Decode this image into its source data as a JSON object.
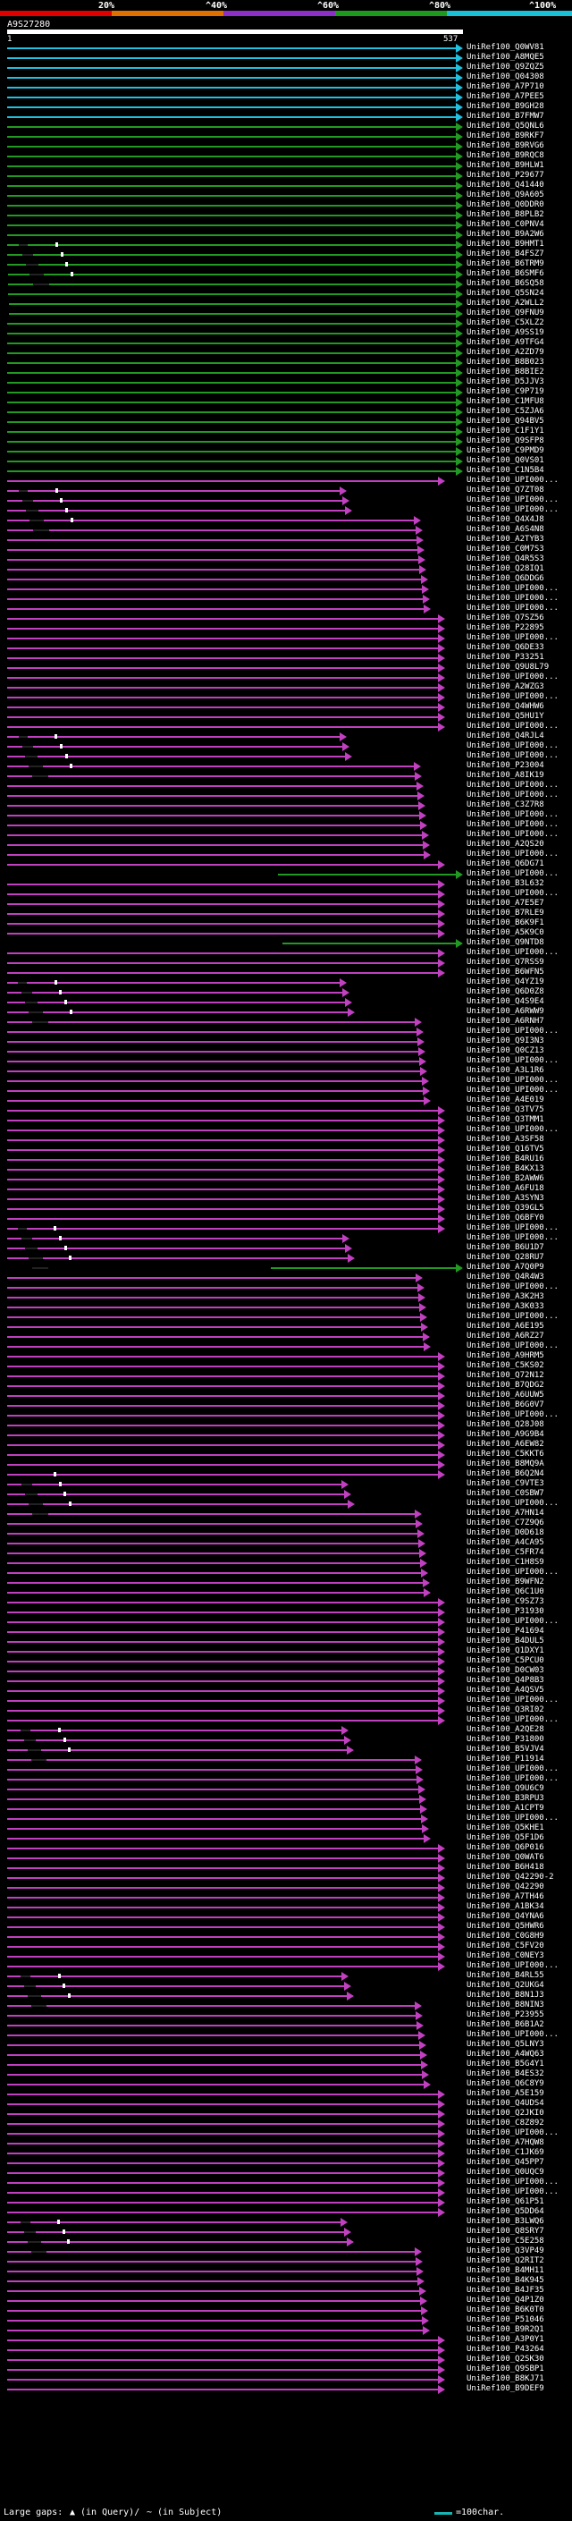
{
  "scale": {
    "ticks": [
      "20%",
      "^40%",
      "^60%",
      "^80%",
      "^100%"
    ],
    "colors": [
      "#e00000",
      "#e07000",
      "#8c2fc8",
      "#1d9a1d",
      "#19c0d8"
    ]
  },
  "query": {
    "id": "A9S27280",
    "start": "1",
    "end": "537"
  },
  "hits": [
    {
      "label": "UniRef100_Q0WV81",
      "color": "#20c0e0"
    },
    {
      "label": "UniRef100_A8MQE5",
      "color": "#20c0e0"
    },
    {
      "label": "UniRef100_Q9ZQZ5",
      "color": "#20c0e0"
    },
    {
      "label": "UniRef100_Q04308",
      "color": "#20c0e0"
    },
    {
      "label": "UniRef100_A7P710",
      "color": "#20c0e0"
    },
    {
      "label": "UniRef100_A7PEE5",
      "color": "#20c0e0"
    },
    {
      "label": "UniRef100_B9GH28",
      "color": "#20c0e0"
    },
    {
      "label": "UniRef100_B7FMW7",
      "color": "#20c0e0"
    },
    {
      "label": "UniRef100_Q5QNL6",
      "color": "#229922"
    },
    {
      "label": "UniRef100_B9RKF7",
      "color": "#229922"
    },
    {
      "label": "UniRef100_B9RVG6",
      "color": "#229922"
    },
    {
      "label": "UniRef100_B9RQC8",
      "color": "#229922"
    },
    {
      "label": "UniRef100_B9HLW1",
      "color": "#229922"
    },
    {
      "label": "UniRef100_P29677",
      "color": "#229922"
    },
    {
      "label": "UniRef100_Q41440",
      "color": "#229922"
    },
    {
      "label": "UniRef100_Q9A605",
      "color": "#229922"
    },
    {
      "label": "UniRef100_Q0DDR0",
      "color": "#229922"
    },
    {
      "label": "UniRef100_B8PLB2",
      "color": "#229922"
    },
    {
      "label": "UniRef100_C0PNV4",
      "color": "#229922"
    },
    {
      "label": "UniRef100_B9A2W6",
      "color": "#229922"
    },
    {
      "label": "UniRef100_B9HMT1",
      "color": "#229922"
    },
    {
      "label": "UniRef100_B4FSZ7",
      "color": "#229922"
    },
    {
      "label": "UniRef100_B6TRM9",
      "color": "#229922"
    },
    {
      "label": "UniRef100_B6SMF6",
      "color": "#229922"
    },
    {
      "label": "UniRef100_B6SQ58",
      "color": "#229922"
    },
    {
      "label": "UniRef100_Q5SN24",
      "color": "#229922"
    },
    {
      "label": "UniRef100_A2WLL2",
      "color": "#229922"
    },
    {
      "label": "UniRef100_Q9FNU9",
      "color": "#229922"
    },
    {
      "label": "UniRef100_C5XLZ2",
      "color": "#229922"
    },
    {
      "label": "UniRef100_A9SS19",
      "color": "#229922"
    },
    {
      "label": "UniRef100_A9TFG4",
      "color": "#229922"
    },
    {
      "label": "UniRef100_A2ZD79",
      "color": "#229922"
    },
    {
      "label": "UniRef100_B8B023",
      "color": "#229922"
    },
    {
      "label": "UniRef100_B8BIE2",
      "color": "#229922"
    },
    {
      "label": "UniRef100_D5JJV3",
      "color": "#229922"
    },
    {
      "label": "UniRef100_C9P719",
      "color": "#229922"
    },
    {
      "label": "UniRef100_C1MFU8",
      "color": "#229922"
    },
    {
      "label": "UniRef100_C5ZJA6",
      "color": "#229922"
    },
    {
      "label": "UniRef100_Q94BV5",
      "color": "#229922"
    },
    {
      "label": "UniRef100_C1F1Y1",
      "color": "#229922"
    },
    {
      "label": "UniRef100_Q9SFP8",
      "color": "#229922"
    },
    {
      "label": "UniRef100_C9PMD9",
      "color": "#229922"
    },
    {
      "label": "UniRef100_Q0VS01",
      "color": "#229922"
    },
    {
      "label": "UniRef100_C1N5B4",
      "color": "#229922"
    },
    {
      "label": "UniRef100_UPI000...",
      "color": "#c040c0"
    },
    {
      "label": "UniRef100_Q7ZT08",
      "color": "#c040c0"
    },
    {
      "label": "UniRef100_UPI000...",
      "color": "#c040c0"
    },
    {
      "label": "UniRef100_UPI000...",
      "color": "#c040c0"
    },
    {
      "label": "UniRef100_Q4X4J8",
      "color": "#c040c0"
    },
    {
      "label": "UniRef100_A6S4N8",
      "color": "#c040c0"
    },
    {
      "label": "UniRef100_A2TYB3",
      "color": "#c040c0"
    },
    {
      "label": "UniRef100_C0M7S3",
      "color": "#c040c0"
    },
    {
      "label": "UniRef100_Q4R5S3",
      "color": "#c040c0"
    },
    {
      "label": "UniRef100_Q28IQ1",
      "color": "#c040c0"
    },
    {
      "label": "UniRef100_Q6DDG6",
      "color": "#c040c0"
    },
    {
      "label": "UniRef100_UPI000...",
      "color": "#c040c0"
    },
    {
      "label": "UniRef100_UPI000...",
      "color": "#c040c0"
    },
    {
      "label": "UniRef100_UPI000...",
      "color": "#c040c0"
    },
    {
      "label": "UniRef100_Q7SZ56",
      "color": "#c040c0"
    },
    {
      "label": "UniRef100_P22895",
      "color": "#c040c0"
    },
    {
      "label": "UniRef100_UPI000...",
      "color": "#c040c0"
    },
    {
      "label": "UniRef100_Q6DE33",
      "color": "#c040c0"
    },
    {
      "label": "UniRef100_P33251",
      "color": "#c040c0"
    },
    {
      "label": "UniRef100_Q9U8L79",
      "color": "#c040c0"
    },
    {
      "label": "UniRef100_UPI000...",
      "color": "#c040c0"
    },
    {
      "label": "UniRef100_A2WZG3",
      "color": "#c040c0"
    },
    {
      "label": "UniRef100_UPI000...",
      "color": "#c040c0"
    },
    {
      "label": "UniRef100_Q4WHW6",
      "color": "#c040c0"
    },
    {
      "label": "UniRef100_Q5HU1Y",
      "color": "#c040c0"
    },
    {
      "label": "UniRef100_UPI000...",
      "color": "#c040c0"
    },
    {
      "label": "UniRef100_Q4RJL4",
      "color": "#c040c0"
    },
    {
      "label": "UniRef100_UPI000...",
      "color": "#c040c0"
    },
    {
      "label": "UniRef100_UPI000...",
      "color": "#c040c0"
    },
    {
      "label": "UniRef100_P23004",
      "color": "#c040c0"
    },
    {
      "label": "UniRef100_A8IK19",
      "color": "#c040c0"
    },
    {
      "label": "UniRef100_UPI000...",
      "color": "#c040c0"
    },
    {
      "label": "UniRef100_UPI000...",
      "color": "#c040c0"
    },
    {
      "label": "UniRef100_C3Z7R8",
      "color": "#c040c0"
    },
    {
      "label": "UniRef100_UPI000...",
      "color": "#c040c0"
    },
    {
      "label": "UniRef100_UPI000...",
      "color": "#c040c0"
    },
    {
      "label": "UniRef100_UPI000...",
      "color": "#c040c0"
    },
    {
      "label": "UniRef100_A2QS20",
      "color": "#c040c0"
    },
    {
      "label": "UniRef100_UPI000...",
      "color": "#c040c0"
    },
    {
      "label": "UniRef100_Q6DG71",
      "color": "#c040c0"
    },
    {
      "label": "UniRef100_UPI000...",
      "color": "#229922"
    },
    {
      "label": "UniRef100_B3L632",
      "color": "#c040c0"
    },
    {
      "label": "UniRef100_UPI000...",
      "color": "#c040c0"
    },
    {
      "label": "UniRef100_A7E5E7",
      "color": "#c040c0"
    },
    {
      "label": "UniRef100_B7RLE9",
      "color": "#c040c0"
    },
    {
      "label": "UniRef100_B6K9F1",
      "color": "#c040c0"
    },
    {
      "label": "UniRef100_A5K9C0",
      "color": "#c040c0"
    },
    {
      "label": "UniRef100_Q9NTD8",
      "color": "#229922"
    },
    {
      "label": "UniRef100_UPI000...",
      "color": "#c040c0"
    },
    {
      "label": "UniRef100_Q7RSS9",
      "color": "#c040c0"
    },
    {
      "label": "UniRef100_B6WFN5",
      "color": "#c040c0"
    },
    {
      "label": "UniRef100_Q4YZ19",
      "color": "#c040c0"
    },
    {
      "label": "UniRef100_Q6D0Z8",
      "color": "#c040c0"
    },
    {
      "label": "UniRef100_Q4S9E4",
      "color": "#c040c0"
    },
    {
      "label": "UniRef100_A6RWW9",
      "color": "#c040c0"
    },
    {
      "label": "UniRef100_A6RNH7",
      "color": "#c040c0"
    },
    {
      "label": "UniRef100_UPI000...",
      "color": "#c040c0"
    },
    {
      "label": "UniRef100_Q9I3N3",
      "color": "#c040c0"
    },
    {
      "label": "UniRef100_Q0CZ13",
      "color": "#c040c0"
    },
    {
      "label": "UniRef100_UPI000...",
      "color": "#c040c0"
    },
    {
      "label": "UniRef100_A3L1R6",
      "color": "#c040c0"
    },
    {
      "label": "UniRef100_UPI000...",
      "color": "#c040c0"
    },
    {
      "label": "UniRef100_UPI000...",
      "color": "#c040c0"
    },
    {
      "label": "UniRef100_A4E019",
      "color": "#c040c0"
    },
    {
      "label": "UniRef100_Q3TV75",
      "color": "#c040c0"
    },
    {
      "label": "UniRef100_Q3TMM1",
      "color": "#c040c0"
    },
    {
      "label": "UniRef100_UPI000...",
      "color": "#c040c0"
    },
    {
      "label": "UniRef100_A3SF58",
      "color": "#c040c0"
    },
    {
      "label": "UniRef100_Q16TV5",
      "color": "#c040c0"
    },
    {
      "label": "UniRef100_B4RU16",
      "color": "#c040c0"
    },
    {
      "label": "UniRef100_B4KX13",
      "color": "#c040c0"
    },
    {
      "label": "UniRef100_B2AWW6",
      "color": "#c040c0"
    },
    {
      "label": "UniRef100_A6FU18",
      "color": "#c040c0"
    },
    {
      "label": "UniRef100_A3SYN3",
      "color": "#c040c0"
    },
    {
      "label": "UniRef100_Q39GL5",
      "color": "#c040c0"
    },
    {
      "label": "UniRef100_Q6BFY0",
      "color": "#c040c0"
    },
    {
      "label": "UniRef100_UPI000...",
      "color": "#c040c0"
    },
    {
      "label": "UniRef100_UPI000...",
      "color": "#c040c0"
    },
    {
      "label": "UniRef100_B6U1D7",
      "color": "#c040c0"
    },
    {
      "label": "UniRef100_Q28RU7",
      "color": "#c040c0"
    },
    {
      "label": "UniRef100_A7Q0P9",
      "color": "#229922"
    },
    {
      "label": "UniRef100_Q4R4W3",
      "color": "#c040c0"
    },
    {
      "label": "UniRef100_UPI000...",
      "color": "#c040c0"
    },
    {
      "label": "UniRef100_A3K2H3",
      "color": "#c040c0"
    },
    {
      "label": "UniRef100_A3K033",
      "color": "#c040c0"
    },
    {
      "label": "UniRef100_UPI000...",
      "color": "#c040c0"
    },
    {
      "label": "UniRef100_A6E195",
      "color": "#c040c0"
    },
    {
      "label": "UniRef100_A6RZ27",
      "color": "#c040c0"
    },
    {
      "label": "UniRef100_UPI000...",
      "color": "#c040c0"
    },
    {
      "label": "UniRef100_A9HRM5",
      "color": "#c040c0"
    },
    {
      "label": "UniRef100_C5KS02",
      "color": "#c040c0"
    },
    {
      "label": "UniRef100_Q72N12",
      "color": "#c040c0"
    },
    {
      "label": "UniRef100_B7QDG2",
      "color": "#c040c0"
    },
    {
      "label": "UniRef100_A6UUW5",
      "color": "#c040c0"
    },
    {
      "label": "UniRef100_B6G0V7",
      "color": "#c040c0"
    },
    {
      "label": "UniRef100_UPI000...",
      "color": "#c040c0"
    },
    {
      "label": "UniRef100_Q28J08",
      "color": "#c040c0"
    },
    {
      "label": "UniRef100_A9G9B4",
      "color": "#c040c0"
    },
    {
      "label": "UniRef100_A6EW82",
      "color": "#c040c0"
    },
    {
      "label": "UniRef100_C5KKT6",
      "color": "#c040c0"
    },
    {
      "label": "UniRef100_B8MQ9A",
      "color": "#c040c0"
    },
    {
      "label": "UniRef100_B6Q2N4",
      "color": "#c040c0"
    },
    {
      "label": "UniRef100_C9VTE3",
      "color": "#c040c0"
    },
    {
      "label": "UniRef100_C0SBW7",
      "color": "#c040c0"
    },
    {
      "label": "UniRef100_UPI000...",
      "color": "#c040c0"
    },
    {
      "label": "UniRef100_A7HN14",
      "color": "#c040c0"
    },
    {
      "label": "UniRef100_C7Z9Q6",
      "color": "#c040c0"
    },
    {
      "label": "UniRef100_D0D618",
      "color": "#c040c0"
    },
    {
      "label": "UniRef100_A4CA95",
      "color": "#c040c0"
    },
    {
      "label": "UniRef100_C5FR74",
      "color": "#c040c0"
    },
    {
      "label": "UniRef100_C1H8S9",
      "color": "#c040c0"
    },
    {
      "label": "UniRef100_UPI000...",
      "color": "#c040c0"
    },
    {
      "label": "UniRef100_B9WFN2",
      "color": "#c040c0"
    },
    {
      "label": "UniRef100_Q6C1U0",
      "color": "#c040c0"
    },
    {
      "label": "UniRef100_C9SZ73",
      "color": "#c040c0"
    },
    {
      "label": "UniRef100_P31930",
      "color": "#c040c0"
    },
    {
      "label": "UniRef100_UPI000...",
      "color": "#c040c0"
    },
    {
      "label": "UniRef100_P41694",
      "color": "#c040c0"
    },
    {
      "label": "UniRef100_B4DUL5",
      "color": "#c040c0"
    },
    {
      "label": "UniRef100_Q1DXY1",
      "color": "#c040c0"
    },
    {
      "label": "UniRef100_C5PCU0",
      "color": "#c040c0"
    },
    {
      "label": "UniRef100_D0CW03",
      "color": "#c040c0"
    },
    {
      "label": "UniRef100_Q4P8B3",
      "color": "#c040c0"
    },
    {
      "label": "UniRef100_A4QSV5",
      "color": "#c040c0"
    },
    {
      "label": "UniRef100_UPI000...",
      "color": "#c040c0"
    },
    {
      "label": "UniRef100_Q3RI02",
      "color": "#c040c0"
    },
    {
      "label": "UniRef100_UPI000...",
      "color": "#c040c0"
    },
    {
      "label": "UniRef100_A2QE28",
      "color": "#c040c0"
    },
    {
      "label": "UniRef100_P31800",
      "color": "#c040c0"
    },
    {
      "label": "UniRef100_B5VJV4",
      "color": "#c040c0"
    },
    {
      "label": "UniRef100_P11914",
      "color": "#c040c0"
    },
    {
      "label": "UniRef100_UPI000...",
      "color": "#c040c0"
    },
    {
      "label": "UniRef100_UPI000...",
      "color": "#c040c0"
    },
    {
      "label": "UniRef100_Q9U6C9",
      "color": "#c040c0"
    },
    {
      "label": "UniRef100_B3RPU3",
      "color": "#c040c0"
    },
    {
      "label": "UniRef100_A1CPT9",
      "color": "#c040c0"
    },
    {
      "label": "UniRef100_UPI000...",
      "color": "#c040c0"
    },
    {
      "label": "UniRef100_Q5KHE1",
      "color": "#c040c0"
    },
    {
      "label": "UniRef100_Q5F1D6",
      "color": "#c040c0"
    },
    {
      "label": "UniRef100_Q6P016",
      "color": "#c040c0"
    },
    {
      "label": "UniRef100_Q0WAT6",
      "color": "#c040c0"
    },
    {
      "label": "UniRef100_B6H418",
      "color": "#c040c0"
    },
    {
      "label": "UniRef100_Q42290-2",
      "color": "#c040c0"
    },
    {
      "label": "UniRef100_Q42290",
      "color": "#c040c0"
    },
    {
      "label": "UniRef100_A7TH46",
      "color": "#c040c0"
    },
    {
      "label": "UniRef100_A1BK34",
      "color": "#c040c0"
    },
    {
      "label": "UniRef100_Q4YNA6",
      "color": "#c040c0"
    },
    {
      "label": "UniRef100_Q5HWR6",
      "color": "#c040c0"
    },
    {
      "label": "UniRef100_C0G8H9",
      "color": "#c040c0"
    },
    {
      "label": "UniRef100_C5FV20",
      "color": "#c040c0"
    },
    {
      "label": "UniRef100_C0NEY3",
      "color": "#c040c0"
    },
    {
      "label": "UniRef100_UPI000...",
      "color": "#c040c0"
    },
    {
      "label": "UniRef100_B4RL55",
      "color": "#c040c0"
    },
    {
      "label": "UniRef100_Q2UKG4",
      "color": "#c040c0"
    },
    {
      "label": "UniRef100_B8N1J3",
      "color": "#c040c0"
    },
    {
      "label": "UniRef100_B8NIN3",
      "color": "#c040c0"
    },
    {
      "label": "UniRef100_P23955",
      "color": "#c040c0"
    },
    {
      "label": "UniRef100_B6B1A2",
      "color": "#c040c0"
    },
    {
      "label": "UniRef100_UPI000...",
      "color": "#c040c0"
    },
    {
      "label": "UniRef100_Q5LNY3",
      "color": "#c040c0"
    },
    {
      "label": "UniRef100_A4WQ63",
      "color": "#c040c0"
    },
    {
      "label": "UniRef100_B5G4Y1",
      "color": "#c040c0"
    },
    {
      "label": "UniRef100_B4ES32",
      "color": "#c040c0"
    },
    {
      "label": "UniRef100_Q6C8Y9",
      "color": "#c040c0"
    },
    {
      "label": "UniRef100_A5E159",
      "color": "#c040c0"
    },
    {
      "label": "UniRef100_Q4UDS4",
      "color": "#c040c0"
    },
    {
      "label": "UniRef100_Q2JKI0",
      "color": "#c040c0"
    },
    {
      "label": "UniRef100_C8Z892",
      "color": "#c040c0"
    },
    {
      "label": "UniRef100_UPI000...",
      "color": "#c040c0"
    },
    {
      "label": "UniRef100_A7HQW8",
      "color": "#c040c0"
    },
    {
      "label": "UniRef100_C1JK69",
      "color": "#c040c0"
    },
    {
      "label": "UniRef100_Q45PP7",
      "color": "#c040c0"
    },
    {
      "label": "UniRef100_Q0UQC9",
      "color": "#c040c0"
    },
    {
      "label": "UniRef100_UPI000...",
      "color": "#c040c0"
    },
    {
      "label": "UniRef100_UPI000...",
      "color": "#c040c0"
    },
    {
      "label": "UniRef100_Q61P51",
      "color": "#c040c0"
    },
    {
      "label": "UniRef100_Q5DD64",
      "color": "#c040c0"
    },
    {
      "label": "UniRef100_B3LWQ6",
      "color": "#c040c0"
    },
    {
      "label": "UniRef100_Q8SRY7",
      "color": "#c040c0"
    },
    {
      "label": "UniRef100_C5E258",
      "color": "#c040c0"
    },
    {
      "label": "UniRef100_Q3VP49",
      "color": "#c040c0"
    },
    {
      "label": "UniRef100_Q2RIT2",
      "color": "#c040c0"
    },
    {
      "label": "UniRef100_B4MH11",
      "color": "#c040c0"
    },
    {
      "label": "UniRef100_B4K945",
      "color": "#c040c0"
    },
    {
      "label": "UniRef100_B4JF35",
      "color": "#c040c0"
    },
    {
      "label": "UniRef100_Q4P1Z0",
      "color": "#c040c0"
    },
    {
      "label": "UniRef100_B6K0T0",
      "color": "#c040c0"
    },
    {
      "label": "UniRef100_P51046",
      "color": "#c040c0"
    },
    {
      "label": "UniRef100_B9R2Q1",
      "color": "#c040c0"
    },
    {
      "label": "UniRef100_A3P0Y1",
      "color": "#c040c0"
    },
    {
      "label": "UniRef100_P43264",
      "color": "#c040c0"
    },
    {
      "label": "UniRef100_Q2SK30",
      "color": "#c040c0"
    },
    {
      "label": "UniRef100_Q9SBP1",
      "color": "#c040c0"
    },
    {
      "label": "UniRef100_B8KJ71",
      "color": "#c040c0"
    },
    {
      "label": "UniRef100_B9DEF9",
      "color": "#c040c0"
    }
  ],
  "legend": {
    "large_gaps": "Large gaps:",
    "in_query": "(in Query)/",
    "in_subject": "(in Subject)",
    "scale_note": "=100char."
  }
}
